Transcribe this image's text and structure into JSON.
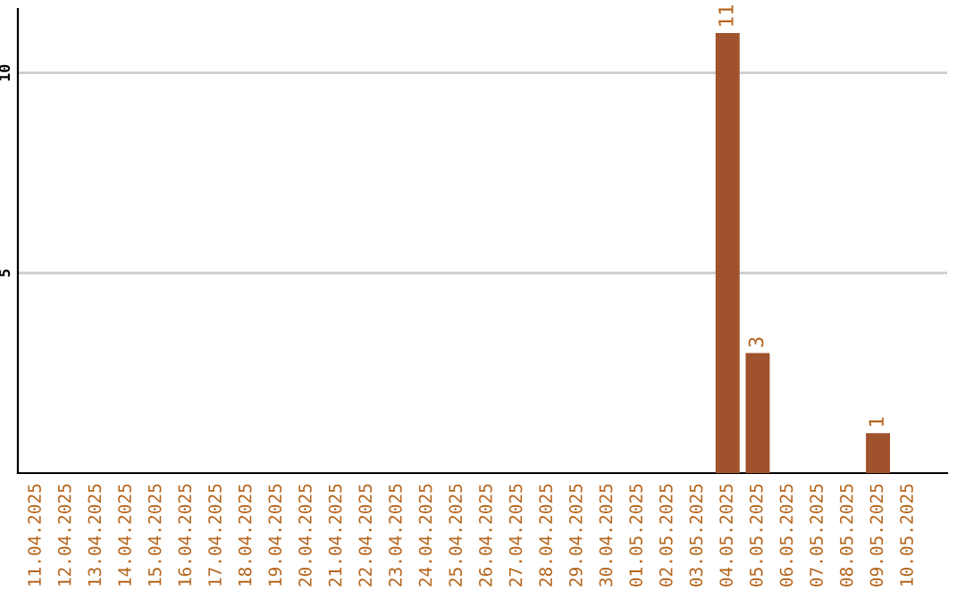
{
  "chart_data": {
    "type": "bar",
    "categories": [
      "11.04.2025",
      "12.04.2025",
      "13.04.2025",
      "14.04.2025",
      "15.04.2025",
      "16.04.2025",
      "17.04.2025",
      "18.04.2025",
      "19.04.2025",
      "20.04.2025",
      "21.04.2025",
      "22.04.2025",
      "23.04.2025",
      "24.04.2025",
      "25.04.2025",
      "26.04.2025",
      "27.04.2025",
      "28.04.2025",
      "29.04.2025",
      "30.04.2025",
      "01.05.2025",
      "02.05.2025",
      "03.05.2025",
      "04.05.2025",
      "05.05.2025",
      "06.05.2025",
      "07.05.2025",
      "08.05.2025",
      "09.05.2025",
      "10.05.2025"
    ],
    "values": [
      0,
      0,
      0,
      0,
      0,
      0,
      0,
      0,
      0,
      0,
      0,
      0,
      0,
      0,
      0,
      0,
      0,
      0,
      0,
      0,
      0,
      0,
      0,
      11,
      3,
      0,
      0,
      0,
      1,
      0
    ],
    "value_labels": [
      null,
      null,
      null,
      null,
      null,
      null,
      null,
      null,
      null,
      null,
      null,
      null,
      null,
      null,
      null,
      null,
      null,
      null,
      null,
      null,
      null,
      null,
      null,
      "11",
      "3",
      null,
      null,
      null,
      "1",
      null
    ],
    "color": "#a0522d",
    "ylim": [
      0,
      11.6
    ],
    "yticks": [
      5,
      10
    ],
    "grid": "y"
  }
}
